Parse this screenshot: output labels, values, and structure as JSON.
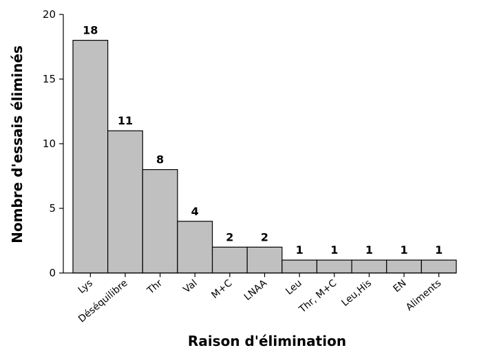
{
  "chart_data": {
    "type": "bar",
    "xlabel": "Raison d'élimination",
    "ylabel": "Nombre d'essais éliminés",
    "categories": [
      "Lys",
      "Déséquilibre",
      "Thr",
      "Val",
      "M+C",
      "LNAA",
      "Leu",
      "Thr, M+C",
      "Leu,His",
      "EN",
      "Aliments"
    ],
    "values": [
      18,
      11,
      8,
      4,
      2,
      2,
      1,
      1,
      1,
      1,
      1
    ],
    "data_labels": [
      "18",
      "11",
      "8",
      "4",
      "2",
      "2",
      "1",
      "1",
      "1",
      "1",
      "1"
    ],
    "ylim": [
      0,
      20
    ],
    "yticks": [
      "0",
      "5",
      "10",
      "15",
      "20"
    ],
    "grid": false,
    "bar_color": "#c0c0c0",
    "bar_edge_color": "#000000"
  }
}
